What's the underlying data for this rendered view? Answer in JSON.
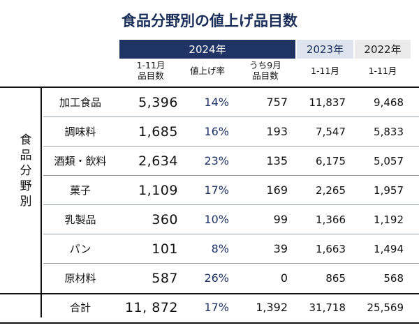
{
  "title": "食品分野別の値上げ品目数",
  "headers": {
    "y2024": "2024年",
    "y2023": "2023年",
    "y2022": "2022年",
    "sub_items": "1-11月\n品目数",
    "sub_rate": "値上げ率",
    "sub_sep": "うち9月\n品目数",
    "sub_2023": "1-11月",
    "sub_2022": "1-11月"
  },
  "side_label": [
    "食",
    "品",
    "分",
    "野",
    "別"
  ],
  "rows": [
    {
      "name": "加工食品",
      "items": "5,396",
      "rate": "14%",
      "sep": "757",
      "y2023": "11,837",
      "y2022": "9,468"
    },
    {
      "name": "調味料",
      "items": "1,685",
      "rate": "16%",
      "sep": "193",
      "y2023": "7,547",
      "y2022": "5,833"
    },
    {
      "name": "酒類・飲料",
      "items": "2,634",
      "rate": "23%",
      "sep": "135",
      "y2023": "6,175",
      "y2022": "5,057"
    },
    {
      "name": "菓子",
      "items": "1,109",
      "rate": "17%",
      "sep": "169",
      "y2023": "2,265",
      "y2022": "1,957"
    },
    {
      "name": "乳製品",
      "items": "360",
      "rate": "10%",
      "sep": "99",
      "y2023": "1,366",
      "y2022": "1,192"
    },
    {
      "name": "パン",
      "items": "101",
      "rate": "8%",
      "sep": "39",
      "y2023": "1,663",
      "y2022": "1,494"
    },
    {
      "name": "原材料",
      "items": "587",
      "rate": "26%",
      "sep": "0",
      "y2023": "865",
      "y2022": "568"
    }
  ],
  "total": {
    "name": "合計",
    "items": "11, 872",
    "rate": "17%",
    "sep": "1,392",
    "y2023": "31,718",
    "y2022": "25,569"
  }
}
